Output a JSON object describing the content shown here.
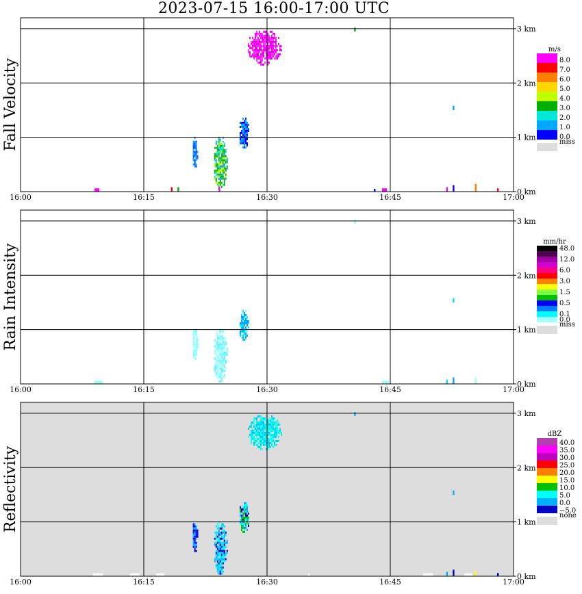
{
  "title": "2023-07-15   16:00-17:00 UTC",
  "chart_data": [
    {
      "type": "heatmap",
      "name": "fall-velocity",
      "ylabel": "Fall Velocity",
      "background": "#ffffff",
      "x_range_min": [
        0,
        60
      ],
      "y_range_km": [
        0,
        3.2
      ],
      "grid": true,
      "xticks": [
        "16:00",
        "16:15",
        "16:30",
        "16:45",
        "17:00"
      ],
      "yticks": [
        "0 km",
        "1 km",
        "2 km",
        "3 km"
      ],
      "legend": {
        "unit": "m/s",
        "labels": [
          "8.0",
          "7.0",
          "6.0",
          "5.0",
          "4.0",
          "3.0",
          "2.0",
          "1.0",
          "0.0"
        ],
        "colors": [
          "#ff00ff",
          "#ff0000",
          "#ff7f00",
          "#ffd700",
          "#c0ff00",
          "#00b000",
          "#00e8d8",
          "#00a8ff",
          "#0000ff"
        ],
        "miss_label": "miss",
        "miss_color": "#dddddd"
      },
      "echoes": [
        {
          "t0": 27.5,
          "t1": 31.7,
          "h0": 2.35,
          "h1": 3.0,
          "colors": [
            "#ff00ff",
            "#ff33ff",
            "#e600e6"
          ]
        },
        {
          "t0": 23.4,
          "t1": 25.1,
          "h0": 0.05,
          "h1": 1.05,
          "colors": [
            "#00b000",
            "#2ab400",
            "#c0ff00",
            "#00a8ff",
            "#00e8d8"
          ]
        },
        {
          "t0": 20.8,
          "t1": 21.5,
          "h0": 0.45,
          "h1": 1.05,
          "colors": [
            "#0080ff",
            "#00a8ff",
            "#0050ff"
          ]
        },
        {
          "t0": 26.5,
          "t1": 27.8,
          "h0": 0.8,
          "h1": 1.4,
          "colors": [
            "#0060ff",
            "#00a8ff",
            "#0000ff"
          ]
        },
        {
          "t0": 9.0,
          "t1": 9.6,
          "h0": 0.0,
          "h1": 0.06,
          "colors": [
            "#ff00ff"
          ]
        },
        {
          "t0": 18.3,
          "t1": 18.5,
          "h0": 0.0,
          "h1": 0.08,
          "colors": [
            "#ff0000"
          ]
        },
        {
          "t0": 19.1,
          "t1": 19.3,
          "h0": 0.0,
          "h1": 0.08,
          "colors": [
            "#00b000"
          ]
        },
        {
          "t0": 24.1,
          "t1": 24.3,
          "h0": 0.0,
          "h1": 0.09,
          "colors": [
            "#ff00ff"
          ]
        },
        {
          "t0": 40.6,
          "t1": 40.8,
          "h0": 2.95,
          "h1": 3.02,
          "colors": [
            "#00b000"
          ]
        },
        {
          "t0": 43.0,
          "t1": 43.2,
          "h0": 0.0,
          "h1": 0.05,
          "colors": [
            "#0000ff"
          ]
        },
        {
          "t0": 44.0,
          "t1": 44.6,
          "h0": 0.0,
          "h1": 0.06,
          "colors": [
            "#ff00ff"
          ]
        },
        {
          "t0": 52.6,
          "t1": 52.8,
          "h0": 1.5,
          "h1": 1.58,
          "colors": [
            "#00a8ff"
          ]
        },
        {
          "t0": 51.8,
          "t1": 52.0,
          "h0": 0.0,
          "h1": 0.08,
          "colors": [
            "#ff00ff"
          ]
        },
        {
          "t0": 52.6,
          "t1": 52.8,
          "h0": 0.0,
          "h1": 0.12,
          "colors": [
            "#0000ff"
          ]
        },
        {
          "t0": 55.3,
          "t1": 55.5,
          "h0": 0.0,
          "h1": 0.14,
          "colors": [
            "#ff7f00"
          ]
        },
        {
          "t0": 58.0,
          "t1": 58.2,
          "h0": 0.0,
          "h1": 0.06,
          "colors": [
            "#ff0000"
          ]
        }
      ]
    },
    {
      "type": "heatmap",
      "name": "rain-intensity",
      "ylabel": "Rain Intensity",
      "background": "#ffffff",
      "x_range_min": [
        0,
        60
      ],
      "y_range_km": [
        0,
        3.2
      ],
      "grid": true,
      "xticks": [
        "16:00",
        "16:15",
        "16:30",
        "16:45",
        "17:00"
      ],
      "yticks": [
        "0 km",
        "1 km",
        "2 km",
        "3 km"
      ],
      "legend": {
        "unit": "mm/hr",
        "labels": [
          "48.0",
          "",
          "12.0",
          "",
          "6.0",
          "",
          "3.0",
          "",
          "1.5",
          "",
          "0.5",
          "",
          "0.1",
          "0.0"
        ],
        "colors": [
          "#000000",
          "#500050",
          "#a000a0",
          "#d000d0",
          "#ff0080",
          "#ff0000",
          "#ff8000",
          "#ffff00",
          "#80ff40",
          "#00c000",
          "#0000ff",
          "#0080ff",
          "#00ffff",
          "#a0ffff"
        ],
        "miss_label": "miss",
        "miss_color": "#dddddd"
      },
      "echoes": [
        {
          "t0": 23.4,
          "t1": 25.1,
          "h0": 0.05,
          "h1": 1.05,
          "colors": [
            "#80ffff",
            "#a0ffff",
            "#60f0ff"
          ]
        },
        {
          "t0": 20.8,
          "t1": 21.5,
          "h0": 0.45,
          "h1": 1.05,
          "colors": [
            "#80ffff",
            "#a0ffff"
          ]
        },
        {
          "t0": 26.5,
          "t1": 27.8,
          "h0": 0.8,
          "h1": 1.4,
          "colors": [
            "#00a0ff",
            "#80ffff",
            "#00e0ff"
          ]
        },
        {
          "t0": 9.0,
          "t1": 10.0,
          "h0": 0.0,
          "h1": 0.06,
          "colors": [
            "#a0ffff"
          ]
        },
        {
          "t0": 44.0,
          "t1": 44.8,
          "h0": 0.0,
          "h1": 0.06,
          "colors": [
            "#a0ffff"
          ]
        },
        {
          "t0": 40.6,
          "t1": 40.8,
          "h0": 2.95,
          "h1": 3.02,
          "colors": [
            "#80ffff"
          ]
        },
        {
          "t0": 52.6,
          "t1": 52.8,
          "h0": 1.5,
          "h1": 1.58,
          "colors": [
            "#00e0ff"
          ]
        },
        {
          "t0": 51.8,
          "t1": 52.0,
          "h0": 0.0,
          "h1": 0.08,
          "colors": [
            "#00e0ff"
          ]
        },
        {
          "t0": 52.6,
          "t1": 52.8,
          "h0": 0.0,
          "h1": 0.12,
          "colors": [
            "#00a0ff"
          ]
        },
        {
          "t0": 55.3,
          "t1": 55.5,
          "h0": 0.0,
          "h1": 0.12,
          "colors": [
            "#a0ffff"
          ]
        }
      ]
    },
    {
      "type": "heatmap",
      "name": "reflectivity",
      "ylabel": "Reflectivity",
      "background": "#dddddd",
      "x_range_min": [
        0,
        60
      ],
      "y_range_km": [
        0,
        3.2
      ],
      "grid": true,
      "xticks": [
        "16:00",
        "16:15",
        "16:30",
        "16:45",
        "17:00"
      ],
      "yticks": [
        "0 km",
        "1 km",
        "2 km",
        "3 km"
      ],
      "legend": {
        "unit": "dBZ",
        "labels": [
          "40.0",
          "35.0",
          "30.0",
          "25.0",
          "20.0",
          "15.0",
          "10.0",
          "5.0",
          "0.0",
          "−5.0"
        ],
        "colors": [
          "#b040b0",
          "#ff00ff",
          "#c000c0",
          "#ff0000",
          "#ff8000",
          "#ffff00",
          "#00c000",
          "#00ffff",
          "#00b0ff",
          "#0000c0"
        ],
        "miss_label": "none",
        "miss_color": "#dddddd"
      },
      "echoes": [
        {
          "t0": 27.5,
          "t1": 31.7,
          "h0": 2.35,
          "h1": 3.0,
          "colors": [
            "#00ffff",
            "#00e8e8",
            "#40ffe0",
            "#00c0ff"
          ]
        },
        {
          "t0": 23.4,
          "t1": 25.1,
          "h0": 0.05,
          "h1": 1.05,
          "colors": [
            "#00ffff",
            "#00e0ff",
            "#00b0ff",
            "#0000c0"
          ]
        },
        {
          "t0": 20.8,
          "t1": 21.5,
          "h0": 0.45,
          "h1": 1.05,
          "colors": [
            "#0000c0",
            "#0000ff",
            "#00b0ff"
          ]
        },
        {
          "t0": 26.5,
          "t1": 27.8,
          "h0": 0.8,
          "h1": 1.4,
          "colors": [
            "#00b0ff",
            "#00ffff",
            "#00c000",
            "#0000c0"
          ]
        },
        {
          "t0": 40.6,
          "t1": 40.8,
          "h0": 2.95,
          "h1": 3.02,
          "colors": [
            "#00b0ff"
          ]
        },
        {
          "t0": 52.6,
          "t1": 52.8,
          "h0": 1.5,
          "h1": 1.58,
          "colors": [
            "#00b0ff"
          ]
        },
        {
          "t0": 51.8,
          "t1": 52.0,
          "h0": 0.0,
          "h1": 0.08,
          "colors": [
            "#00b0ff"
          ]
        },
        {
          "t0": 52.6,
          "t1": 52.8,
          "h0": 0.0,
          "h1": 0.12,
          "colors": [
            "#0000c0"
          ]
        },
        {
          "t0": 55.3,
          "t1": 55.5,
          "h0": 0.0,
          "h1": 0.1,
          "colors": [
            "#ffff00"
          ]
        },
        {
          "t0": 58.0,
          "t1": 58.2,
          "h0": 0.0,
          "h1": 0.06,
          "colors": [
            "#0000c0"
          ]
        },
        {
          "t0": 8.8,
          "t1": 10.0,
          "h0": 0.0,
          "h1": 0.05,
          "colors": [
            "#ffffff"
          ]
        },
        {
          "t0": 13.3,
          "t1": 14.5,
          "h0": 0.0,
          "h1": 0.05,
          "colors": [
            "#ffffff"
          ]
        },
        {
          "t0": 16.5,
          "t1": 17.5,
          "h0": 0.0,
          "h1": 0.05,
          "colors": [
            "#ffffff"
          ]
        },
        {
          "t0": 35.0,
          "t1": 35.2,
          "h0": 0.0,
          "h1": 0.05,
          "colors": [
            "#ffffff"
          ]
        },
        {
          "t0": 49.0,
          "t1": 50.2,
          "h0": 0.0,
          "h1": 0.05,
          "colors": [
            "#ffffff"
          ]
        },
        {
          "t0": 54.0,
          "t1": 55.0,
          "h0": 0.0,
          "h1": 0.05,
          "colors": [
            "#ffffff"
          ]
        }
      ]
    }
  ]
}
